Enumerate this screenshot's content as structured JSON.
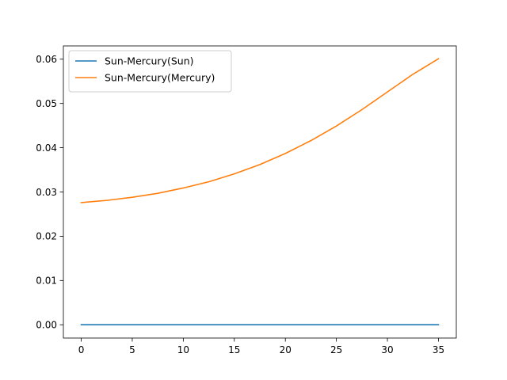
{
  "chart_data": {
    "type": "line",
    "title": "",
    "xlabel": "",
    "ylabel": "",
    "xlim": [
      -1.75,
      36.75
    ],
    "ylim": [
      -0.003,
      0.063
    ],
    "xticks": [
      0,
      5,
      10,
      15,
      20,
      25,
      30,
      35
    ],
    "xtick_labels": [
      "0",
      "5",
      "10",
      "15",
      "20",
      "25",
      "30",
      "35"
    ],
    "yticks": [
      0.0,
      0.01,
      0.02,
      0.03,
      0.04,
      0.05,
      0.06
    ],
    "ytick_labels": [
      "0.00",
      "0.01",
      "0.02",
      "0.03",
      "0.04",
      "0.05",
      "0.06"
    ],
    "grid": false,
    "legend_position": "top-left",
    "series": [
      {
        "name": "Sun-Mercury(Sun)",
        "color": "#1f77b4",
        "x": [
          0,
          5,
          10,
          15,
          20,
          25,
          30,
          35
        ],
        "y": [
          0.0,
          0.0,
          0.0,
          0.0,
          0.0,
          0.0,
          0.0,
          0.0
        ]
      },
      {
        "name": "Sun-Mercury(Mercury)",
        "color": "#ff7f0e",
        "x": [
          0,
          2.5,
          5,
          7.5,
          10,
          12.5,
          15,
          17.5,
          20,
          22.5,
          25,
          27.5,
          30,
          32.5,
          35
        ],
        "y": [
          0.0276,
          0.0281,
          0.0288,
          0.0297,
          0.0309,
          0.0323,
          0.0341,
          0.0362,
          0.0387,
          0.0416,
          0.0449,
          0.0486,
          0.0526,
          0.0566,
          0.0601
        ]
      }
    ]
  }
}
